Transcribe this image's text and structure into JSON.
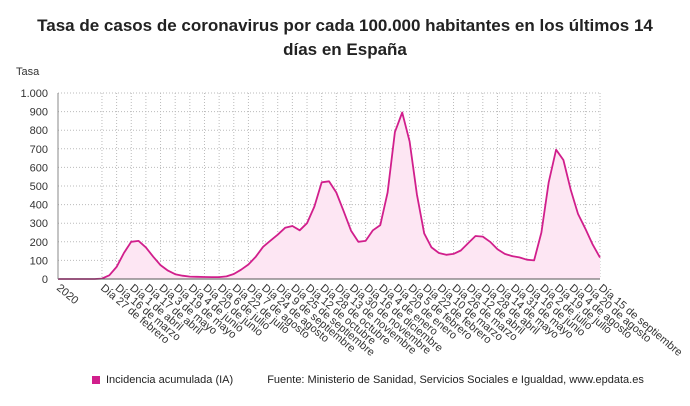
{
  "chart_data": {
    "type": "area",
    "title": "Tasa de casos de coronavirus por cada 100.000 habitantes en los últimos 14 días en España",
    "y_label": "Tasa",
    "source": "Fuente: Ministerio de Sanidad, Servicios Sociales e Igualdad, www.epdata.es",
    "categories": [
      "2020",
      null,
      null,
      null,
      null,
      null,
      "Día 27 de febrero",
      null,
      "Día 16 de marzo",
      null,
      "Día 1 de abril",
      null,
      "Día 17 de abril",
      null,
      "Día 3 de mayo",
      null,
      "Día 19 de mayo",
      null,
      "Día 4 de junio",
      null,
      "Día 20 de junio",
      null,
      "Día 6 de julio",
      null,
      "Día 22 de julio",
      null,
      "Día 7 de agosto",
      null,
      "Día 24 de agosto",
      null,
      "Día 9 de septiembre",
      null,
      "Día 25 de septiembre",
      null,
      "Día 12 de octubre",
      null,
      "Día 28 de octubre",
      null,
      "Día 13 de noviembre",
      null,
      "Día 30 de noviembre",
      null,
      "Día 16 de diciembre",
      null,
      "Día 4 de enero",
      null,
      "Día 20 de enero",
      null,
      "Día 5 de febrero",
      null,
      "Día 22 de febrero",
      null,
      "Día 10 de marzo",
      null,
      "Día 26 de marzo",
      null,
      "Día 12 de abril",
      null,
      "Día 28 de abril",
      null,
      "Día 14 de mayo",
      null,
      "Día 31 de mayo",
      null,
      "Día 16 de junio",
      null,
      "Día 2 de julio",
      null,
      "Día 19 de julio",
      null,
      "Día 4 de agosto",
      null,
      "Día 20 de agosto",
      null,
      "Día 15 de septiembre"
    ],
    "series": [
      {
        "name": "Incidencia acumulada (IA)",
        "color": "#d11f8c",
        "fill": "#fde6f3",
        "values": [
          0,
          0,
          0,
          0,
          0,
          0,
          2,
          20,
          65,
          140,
          200,
          205,
          170,
          120,
          75,
          45,
          26,
          18,
          13,
          12,
          11,
          10,
          10,
          14,
          27,
          50,
          78,
          120,
          173,
          206,
          238,
          275,
          285,
          262,
          300,
          390,
          520,
          525,
          465,
          365,
          260,
          200,
          205,
          262,
          290,
          465,
          790,
          895,
          740,
          455,
          245,
          170,
          140,
          130,
          135,
          153,
          193,
          231,
          228,
          200,
          160,
          135,
          123,
          116,
          104,
          100,
          250,
          520,
          695,
          640,
          480,
          350,
          270,
          185,
          115
        ]
      }
    ],
    "ylim": [
      0,
      1000
    ],
    "yticks": [
      0,
      100,
      200,
      300,
      400,
      500,
      600,
      700,
      800,
      900,
      {
        "value": 1000,
        "label": "1.000"
      }
    ],
    "grid": true
  }
}
